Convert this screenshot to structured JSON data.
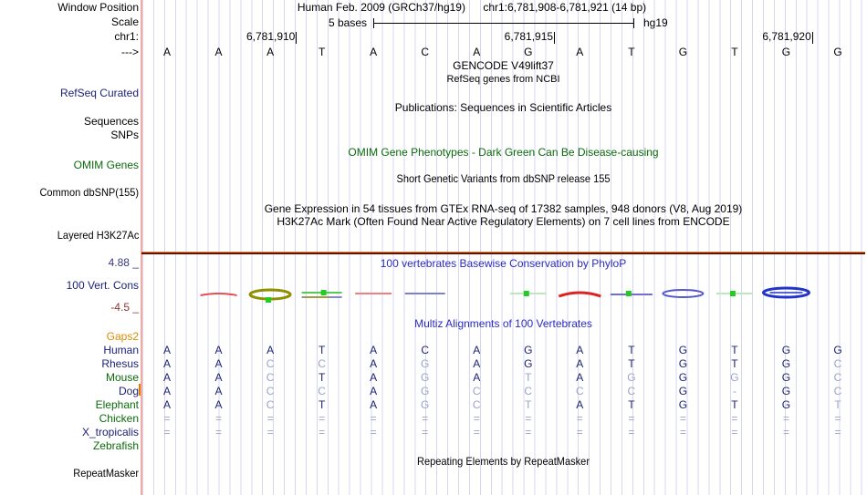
{
  "header": {
    "assembly": "Human Feb. 2009 (GRCh37/hg19)",
    "position": "chr1:6,781,908-6,781,921 (14 bp)"
  },
  "scale": {
    "label": "5 bases",
    "genome": "hg19"
  },
  "ruler": {
    "chrom_prefix": "chr1:",
    "strand_arrow": "--->",
    "ticks": [
      {
        "label": "6,781,910",
        "after_base": 2
      },
      {
        "label": "6,781,915",
        "after_base": 7
      },
      {
        "label": "6,781,920",
        "after_base": 12
      }
    ],
    "bases": [
      "A",
      "A",
      "A",
      "T",
      "A",
      "C",
      "A",
      "G",
      "A",
      "T",
      "G",
      "T",
      "G",
      "G"
    ]
  },
  "left_labels": {
    "window_position": "Window Position",
    "scale": "Scale",
    "refseq_curated": "RefSeq Curated",
    "sequences": "Sequences",
    "snps": "SNPs",
    "omim_genes": "OMIM Genes",
    "common_dbsnp": "Common dbSNP(155)",
    "layered_h3k27ac": "Layered H3K27Ac",
    "vert_cons": "100 Vert. Cons",
    "repeatmasker": "RepeatMasker"
  },
  "track_titles": {
    "gencode": "GENCODE V49lift37",
    "refseq_sub": "RefSeq genes from NCBI",
    "publications": "Publications: Sequences in Scientific Articles",
    "omim": "OMIM Gene Phenotypes - Dark Green Can Be Disease-causing",
    "dbsnp": "Short Genetic Variants from dbSNP release 155",
    "gtex": "Gene Expression in 54 tissues from GTEx RNA-seq of 17382 samples, 948 donors (V8, Aug 2019)",
    "h3k27ac": "H3K27Ac Mark (Often Found Near Active Regulatory Elements) on 7 cell lines from ENCODE",
    "phylop": "100 vertebrates Basewise Conservation by PhyloP",
    "multiz": "Multiz Alignments of 100 Vertebrates",
    "repeatmasker": "Repeating Elements by RepeatMasker"
  },
  "conservation": {
    "max_label": "4.88 _",
    "min_label": "-4.5 _",
    "marks": [
      {
        "col": 1,
        "type": "red-arc-small"
      },
      {
        "col": 2,
        "type": "olive-ellipse-dot"
      },
      {
        "col": 3,
        "type": "green-blue-stack"
      },
      {
        "col": 4,
        "type": "red-line"
      },
      {
        "col": 5,
        "type": "blue-line"
      },
      {
        "col": 7,
        "type": "green-line-dot"
      },
      {
        "col": 8,
        "type": "red-arc"
      },
      {
        "col": 9,
        "type": "blue-line-dot"
      },
      {
        "col": 10,
        "type": "blue-ellipse"
      },
      {
        "col": 11,
        "type": "green-line-dot"
      },
      {
        "col": 12,
        "type": "blue-ellipse-bold"
      }
    ]
  },
  "alignment": {
    "reference": "AAATACAGATGTGG",
    "rows": [
      {
        "name": "Gaps2",
        "color": "orange",
        "seq": ""
      },
      {
        "name": "Human",
        "color": "navy",
        "seq": "AAATACAGATGTGG"
      },
      {
        "name": "Rhesus",
        "color": "navy",
        "seq": "AACCAGAGATGTGC"
      },
      {
        "name": "Mouse",
        "color": "green",
        "seq": "AACTAGATAGGGGC"
      },
      {
        "name": "Dog",
        "color": "navy",
        "seq": "AACCAGCCCCG-GC"
      },
      {
        "name": "Elephant",
        "color": "green",
        "seq": "AACTAGCTATGTGT"
      },
      {
        "name": "Chicken",
        "color": "green",
        "seq": "=============="
      },
      {
        "name": "X_tropicalis",
        "color": "navy",
        "seq": "=============="
      },
      {
        "name": "Zebrafish",
        "color": "green",
        "seq": ""
      }
    ]
  },
  "colors": {
    "match_letter": "#1B2472",
    "mismatch_letter": "#9AA4C8",
    "navy_label": "#1C2277",
    "green_label": "#0B6B0B",
    "orange_label": "#E08A00",
    "title_blue": "#2A2AC8",
    "omim_green": "#0B6B0B",
    "cons_max": "#3A3A7E",
    "cons_min": "#8B3535",
    "grid_line": "#D6D6F0",
    "edge_pink": "#F2ABA4"
  }
}
